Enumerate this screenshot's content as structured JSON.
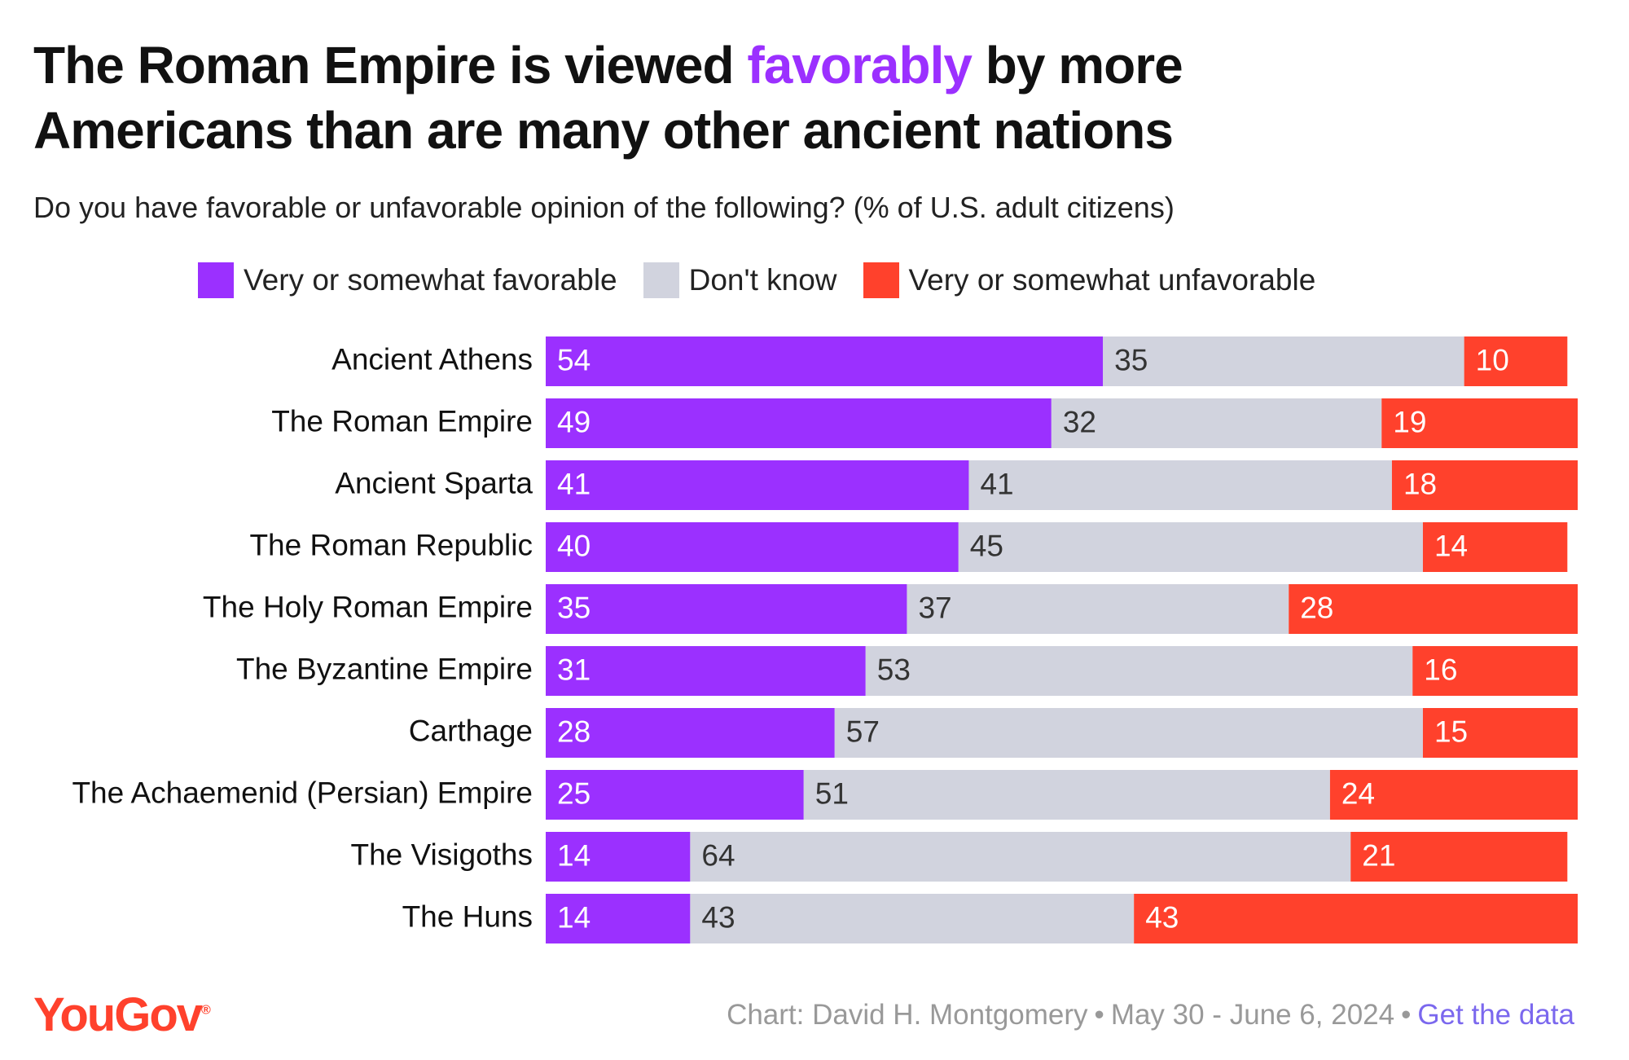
{
  "chart_data": {
    "type": "stacked_bar",
    "title_start": "The Roman Empire is viewed ",
    "title_highlight": "favorably",
    "title_end": " by more Americans than are many other ancient nations",
    "highlight_color": "#9b30ff",
    "subtitle": "Do you have favorable or unfavorable opinion of the following? (% of U.S. adult citizens)",
    "categories": [
      "Ancient Athens",
      "The Roman Empire",
      "Ancient Sparta",
      "The Roman Republic",
      "The Holy Roman Empire",
      "The Byzantine Empire",
      "Carthage",
      "The Achaemenid (Persian) Empire",
      "The Visigoths",
      "The Huns"
    ],
    "series": [
      {
        "name": "Very or somewhat favorable",
        "color": "#9b30ff",
        "label_color": "#ffffff",
        "values": [
          54,
          49,
          41,
          40,
          35,
          31,
          28,
          25,
          14,
          14
        ]
      },
      {
        "name": "Don't know",
        "color": "#d1d3de",
        "label_color": "#333333",
        "values": [
          35,
          32,
          41,
          45,
          37,
          53,
          57,
          51,
          64,
          43
        ]
      },
      {
        "name": "Very or somewhat unfavorable",
        "color": "#ff412c",
        "label_color": "#ffffff",
        "values": [
          10,
          19,
          18,
          14,
          28,
          16,
          15,
          24,
          21,
          43
        ]
      }
    ],
    "xlim": [
      0,
      100
    ],
    "logo": "YouGov",
    "logo_mark": "®",
    "logo_color": "#ff412c",
    "source": "Chart: David H. Montgomery",
    "separator": "•",
    "date": "May 30 - June 6, 2024",
    "link": "Get the data",
    "link_color": "#7b68ee"
  }
}
